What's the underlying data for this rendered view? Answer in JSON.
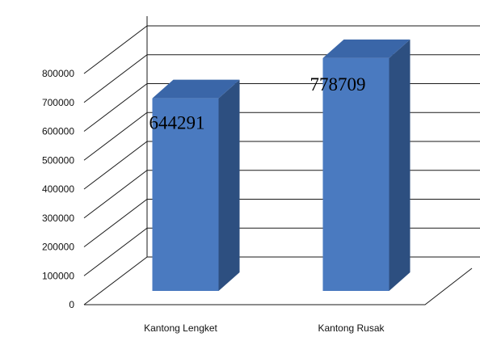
{
  "chart_data": {
    "type": "bar",
    "categories": [
      "Kantong Lengket",
      "Kantong Rusak"
    ],
    "values": [
      644291,
      778709
    ],
    "data_labels": [
      "644291",
      "778709"
    ],
    "ylim": [
      0,
      800000
    ],
    "y_ticks": [
      "0",
      "100000",
      "200000",
      "300000",
      "400000",
      "500000",
      "600000",
      "700000",
      "800000"
    ],
    "grid": true,
    "style": "3d-column",
    "colors": {
      "bar_front": "#4a7ac0",
      "bar_side": "#2d4f80",
      "bar_top": "#3a66a8",
      "grid": "#1a1a1a"
    }
  }
}
